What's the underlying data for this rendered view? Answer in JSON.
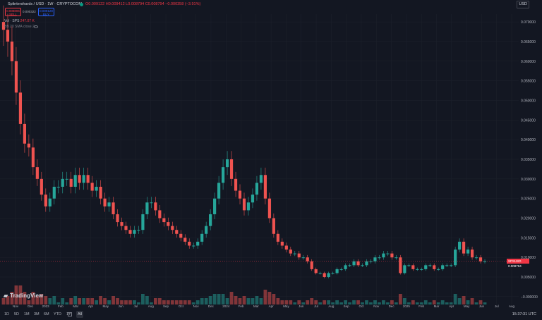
{
  "header": {
    "title": "Splintershards / USD · 1W · CRYPTOCOM",
    "ohlc": "O0.009122 H0.009412 L0.008794 C0.008794 −0.000358 (−3.91%)",
    "currency": "USD"
  },
  "trade": {
    "sell_price": "0.008806",
    "sell_label": "SELL",
    "spread": "0.000322",
    "buy_price": "0.009128",
    "buy_label": "BUY"
  },
  "indicators": {
    "vol_label": "Vol · SPS",
    "vol_value": "247.07 K",
    "bb_label": "BB 20 SMA close 2"
  },
  "price_axis": [
    "0.070000",
    "0.065000",
    "0.060000",
    "0.055000",
    "0.050000",
    "0.045000",
    "0.040000",
    "0.035000",
    "0.030000",
    "0.025000",
    "0.020000",
    "0.015000",
    "0.010000",
    "0.005000",
    "−0.000000"
  ],
  "last_price_tag": {
    "symbol": "SPSUSD",
    "value": "0.008794"
  },
  "time_axis": [
    "Nov",
    "Dec",
    "2023",
    "Feb",
    "Mar",
    "Apr",
    "May",
    "Jun",
    "Jul",
    "Aug",
    "Sep",
    "Oct",
    "Nov",
    "Dec",
    "2024",
    "Feb",
    "Mar",
    "Apr",
    "May",
    "Jun",
    "Jul",
    "Aug",
    "Sep",
    "Oct",
    "Nov",
    "Dec",
    "2025",
    "Feb",
    "Mar",
    "Apr",
    "May",
    "Jun",
    "Jul",
    "Aug"
  ],
  "bottom": {
    "timeframes": [
      "1D",
      "5D",
      "1M",
      "3M",
      "6M",
      "YTD",
      "1Y",
      "All"
    ],
    "active": "All",
    "clock": "15:37:31 UTC"
  },
  "logo": "TradingView",
  "colors": {
    "up": "#26a69a",
    "down": "#ef5350",
    "background": "#131722"
  },
  "chart_data": {
    "type": "candlestick",
    "interval": "1W",
    "ylim": [
      -0.002,
      0.072
    ],
    "close_series": [
      0.068,
      0.065,
      0.06,
      0.052,
      0.044,
      0.039,
      0.038,
      0.033,
      0.03,
      0.026,
      0.023,
      0.025,
      0.028,
      0.028,
      0.03,
      0.03,
      0.028,
      0.031,
      0.029,
      0.031,
      0.029,
      0.027,
      0.028,
      0.025,
      0.023,
      0.024,
      0.021,
      0.019,
      0.018,
      0.017,
      0.016,
      0.017,
      0.017,
      0.021,
      0.024,
      0.024,
      0.022,
      0.02,
      0.019,
      0.018,
      0.017,
      0.016,
      0.015,
      0.014,
      0.013,
      0.013,
      0.014,
      0.016,
      0.018,
      0.021,
      0.025,
      0.029,
      0.033,
      0.035,
      0.03,
      0.027,
      0.025,
      0.022,
      0.024,
      0.026,
      0.029,
      0.031,
      0.025,
      0.02,
      0.016,
      0.014,
      0.013,
      0.012,
      0.011,
      0.011,
      0.01,
      0.01,
      0.009,
      0.007,
      0.006,
      0.006,
      0.005,
      0.006,
      0.006,
      0.007,
      0.007,
      0.008,
      0.008,
      0.009,
      0.008,
      0.008,
      0.009,
      0.009,
      0.01,
      0.01,
      0.011,
      0.011,
      0.01,
      0.01,
      0.006,
      0.008,
      0.008,
      0.007,
      0.007,
      0.007,
      0.008,
      0.008,
      0.007,
      0.007,
      0.008,
      0.008,
      0.008,
      0.012,
      0.014,
      0.011,
      0.012,
      0.01,
      0.01,
      0.009,
      0.009
    ]
  }
}
